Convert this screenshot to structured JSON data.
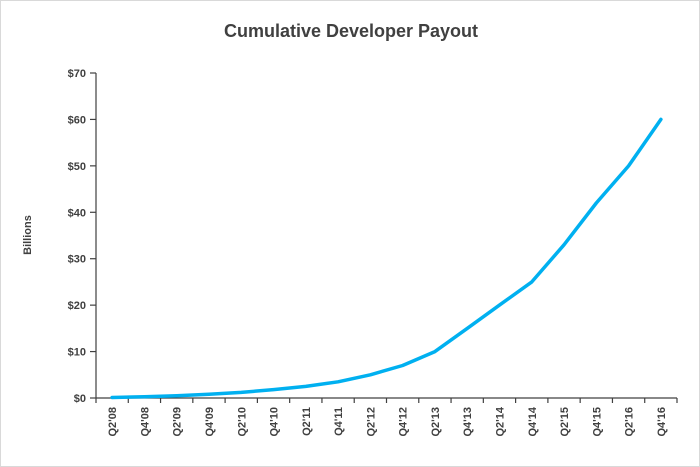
{
  "frame": {
    "background": "#ffffff",
    "border_color": "#d9d9d9"
  },
  "chart_data": {
    "type": "line",
    "title": "Cumulative Developer Payout",
    "xlabel": "",
    "ylabel": "Billions",
    "categories": [
      "Q2'08",
      "Q4'08",
      "Q2'09",
      "Q4'09",
      "Q2'10",
      "Q4'10",
      "Q2'11",
      "Q4'11",
      "Q2'12",
      "Q4'12",
      "Q2'13",
      "Q4'13",
      "Q2'14",
      "Q4'14",
      "Q2'15",
      "Q4'15",
      "Q2'16",
      "Q4'16"
    ],
    "series": [
      {
        "name": "Cumulative Developer Payout",
        "color": "#00b0f0",
        "values": [
          0.1,
          0.25,
          0.5,
          0.8,
          1.2,
          1.8,
          2.5,
          3.5,
          5,
          7,
          10,
          15,
          20,
          25,
          33,
          42,
          50,
          60
        ]
      }
    ],
    "ylim": [
      0,
      70
    ],
    "ytick_step": 10,
    "ytick_labels": [
      "$0",
      "$10",
      "$20",
      "$30",
      "$40",
      "$50",
      "$60",
      "$70"
    ],
    "x_tick_rotation_deg": 90,
    "grid": false,
    "legend_position": "none",
    "text_color": "#404040",
    "axis_color": "#404040"
  }
}
